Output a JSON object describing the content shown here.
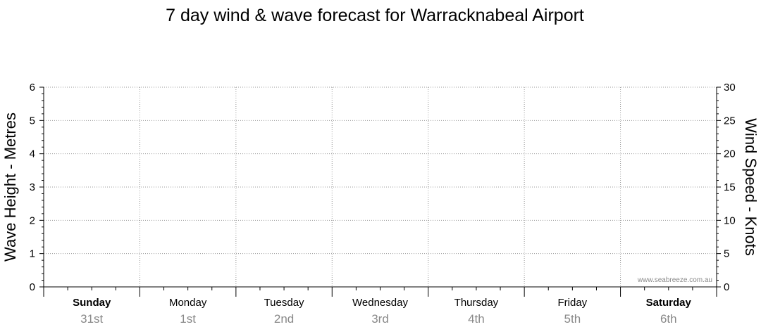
{
  "chart_data": {
    "type": "line",
    "title": "7 day wind & wave forecast for Warracknabeal Airport",
    "y_left": {
      "label": "Wave Height - Metres",
      "range": [
        0,
        6
      ],
      "ticks": [
        0,
        1,
        2,
        3,
        4,
        5,
        6
      ]
    },
    "y_right": {
      "label": "Wind Speed - Knots",
      "range": [
        0,
        30
      ],
      "ticks": [
        0,
        5,
        10,
        15,
        20,
        25,
        30
      ]
    },
    "days": [
      {
        "name": "Sunday",
        "date": "31st",
        "bold": true
      },
      {
        "name": "Monday",
        "date": "1st",
        "bold": false
      },
      {
        "name": "Tuesday",
        "date": "2nd",
        "bold": false
      },
      {
        "name": "Wednesday",
        "date": "3rd",
        "bold": false
      },
      {
        "name": "Thursday",
        "date": "4th",
        "bold": false
      },
      {
        "name": "Friday",
        "date": "5th",
        "bold": false
      },
      {
        "name": "Saturday",
        "date": "6th",
        "bold": true
      }
    ],
    "series": [],
    "grid": true,
    "watermark": "www.seabreeze.com.au"
  }
}
